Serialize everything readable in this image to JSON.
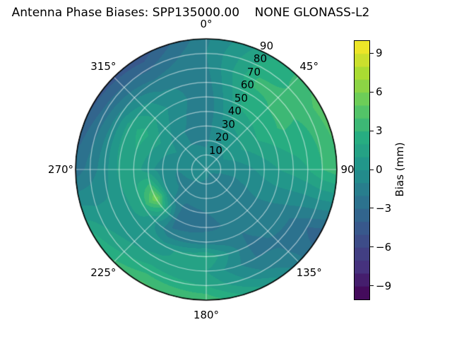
{
  "title": "Antenna Phase Biases: SPP135000.00    NONE GLONASS-L2",
  "chart_data": {
    "type": "heatmap",
    "projection": "polar",
    "title": "Antenna Phase Biases: SPP135000.00    NONE GLONASS-L2",
    "angular_axis": {
      "unit": "degrees",
      "direction": "clockwise",
      "zero_location": "top",
      "ticks_deg": [
        0,
        45,
        90,
        135,
        180,
        225,
        270,
        315
      ],
      "tick_labels": [
        "0°",
        "45°",
        "90",
        "135°",
        "180°",
        "225°",
        "270°",
        "315°"
      ]
    },
    "radial_axis": {
      "range": [
        0,
        90
      ],
      "ticks": [
        10,
        20,
        30,
        40,
        50,
        60,
        70,
        80,
        90
      ],
      "tick_labels": [
        "10",
        "20",
        "30",
        "40",
        "50",
        "60",
        "70",
        "80",
        "90"
      ],
      "label_angle_deg": 26
    },
    "colorbar": {
      "label": "Bias (mm)",
      "ticks": [
        9,
        6,
        3,
        0,
        -3,
        -6,
        -9
      ],
      "tick_labels": [
        "9",
        "6",
        "3",
        "0",
        "−3",
        "−6",
        "−9"
      ],
      "range": [
        -10,
        10
      ],
      "n_levels": 20,
      "colormap": "viridis"
    },
    "grid": true,
    "azimuth_deg": [
      0,
      30,
      60,
      90,
      120,
      150,
      180,
      210,
      240,
      270,
      300,
      330
    ],
    "zenith_deg": [
      0,
      10,
      20,
      30,
      40,
      50,
      60,
      70,
      80,
      90
    ],
    "bias_mm": [
      [
        -0.5,
        -0.8,
        -1.2,
        -1.5,
        -1.8,
        -1.8,
        -1.5,
        -1.2,
        -1.0,
        -1.2
      ],
      [
        -0.5,
        -0.4,
        0.0,
        0.6,
        1.4,
        2.2,
        2.8,
        3.2,
        2.6,
        1.8
      ],
      [
        -0.5,
        -0.2,
        0.4,
        1.2,
        2.0,
        2.6,
        3.2,
        3.0,
        3.4,
        4.6
      ],
      [
        -0.6,
        -0.8,
        -0.6,
        -0.2,
        0.4,
        1.0,
        1.4,
        2.0,
        3.0,
        3.6
      ],
      [
        -0.8,
        -1.2,
        -1.4,
        -1.2,
        -1.0,
        -1.2,
        -1.6,
        -2.2,
        -3.0,
        -3.8
      ],
      [
        -0.8,
        -1.4,
        -1.8,
        -1.8,
        -1.8,
        -2.0,
        -2.2,
        -2.0,
        -1.0,
        0.6
      ],
      [
        -0.6,
        -1.2,
        -1.8,
        -2.0,
        -2.2,
        -1.5,
        2.2,
        1.0,
        2.0,
        3.8
      ],
      [
        -0.5,
        -1.0,
        -1.6,
        -2.2,
        -2.4,
        -1.8,
        0.5,
        1.2,
        2.6,
        4.2
      ],
      [
        -0.5,
        -0.9,
        -1.2,
        -0.2,
        6.0,
        2.2,
        0.6,
        0.4,
        1.0,
        2.2
      ],
      [
        -0.5,
        -0.8,
        -1.0,
        -0.6,
        0.4,
        1.6,
        1.2,
        -0.4,
        -1.6,
        -2.6
      ],
      [
        -0.5,
        -0.6,
        -0.2,
        0.4,
        1.4,
        2.4,
        1.6,
        -0.6,
        -2.6,
        -4.2
      ],
      [
        -0.5,
        -0.7,
        -1.0,
        -1.0,
        -0.6,
        -0.2,
        -0.8,
        -1.8,
        -3.2,
        -4.6
      ]
    ]
  },
  "colors": {
    "background": "#ffffff",
    "outline": "#000000",
    "grid_line": "rgba(255,255,255,0.55)",
    "viridis_anchors": [
      [
        0.0,
        "#440154"
      ],
      [
        0.125,
        "#46327e"
      ],
      [
        0.25,
        "#3b528b"
      ],
      [
        0.375,
        "#2c728e"
      ],
      [
        0.5,
        "#21918c"
      ],
      [
        0.625,
        "#27ad81"
      ],
      [
        0.75,
        "#5ec962"
      ],
      [
        0.875,
        "#aadc32"
      ],
      [
        1.0,
        "#fde725"
      ]
    ]
  }
}
